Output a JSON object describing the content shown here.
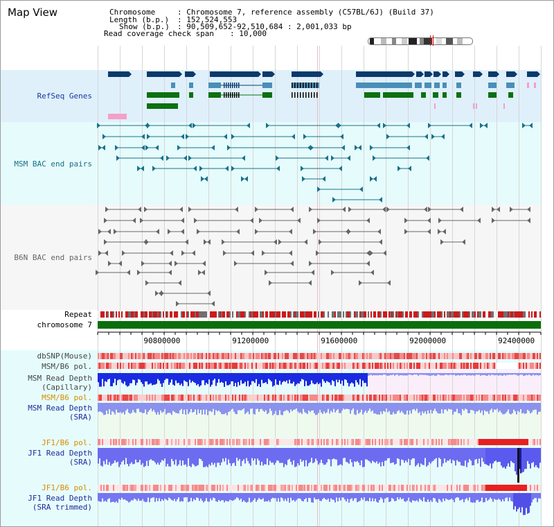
{
  "map": {
    "title": "Map View",
    "info": {
      "chromosome_label": "Chromosome",
      "chromosome_value": ": Chromosome 7, reference assembly (C57BL/6J) (Build 37)",
      "length_label": "Length (b.p.)",
      "length_value": ": 152,524,553",
      "show_label": "Show (b.p.)",
      "show_value": ": 90,509,652-92,510,684 : 2,001,033 bp",
      "span_label": "Read coverage check span",
      "span_value": ": 10,000"
    }
  },
  "tracks": {
    "refseq": "RefSeq Genes",
    "msm_bac": "MSM BAC end pairs",
    "b6n_bac": "B6N BAC end pairs",
    "repeat": "Repeat",
    "chromosome": "chromosome 7",
    "dbsnp": "dbSNP(Mouse)",
    "msm_b6_pol": "MSM/B6 pol.",
    "msm_read_depth_cap_1": "MSM Read Depth",
    "msm_read_depth_cap_2": "(Capillary)",
    "msm_b6_pol_2": "MSM/B6 pol.",
    "msm_read_depth_sra_1": "MSM Read Depth",
    "msm_read_depth_sra_2": "(SRA)",
    "jf1_b6_pol": "JF1/B6 pol.",
    "jf1_read_depth_sra_1": "JF1 Read Depth",
    "jf1_read_depth_sra_2": "(SRA)",
    "jf1_b6_pol_2": "JF1/B6 pol.",
    "jf1_read_depth_trim_1": "JF1 Read Depth",
    "jf1_read_depth_trim_2": "(SRA trimmed)"
  },
  "axis": {
    "ticks": [
      "90800000",
      "91200000",
      "91600000",
      "92000000",
      "92400000"
    ],
    "tick_positions_bp": [
      90800000,
      91200000,
      91600000,
      92000000,
      92400000
    ],
    "range_bp": [
      90509652,
      92510684
    ]
  },
  "colors": {
    "refseq_bg": "#dff0fb",
    "msm_bg": "#e6fbfb",
    "gene_dark": "#0b3a6a",
    "gene_mid": "#4a8fb8",
    "gene_green": "#0d7010",
    "gene_pink": "#f4a0c8",
    "msm_pair": "#19728c",
    "b6n_pair": "#666666",
    "chromosome_bar": "#0a6e0a",
    "label_refseq": "#1a3aa0",
    "label_msm": "#16708a",
    "label_b6n": "#666666",
    "label_orange": "#d98a00",
    "label_navy": "#1a2a9a"
  }
}
